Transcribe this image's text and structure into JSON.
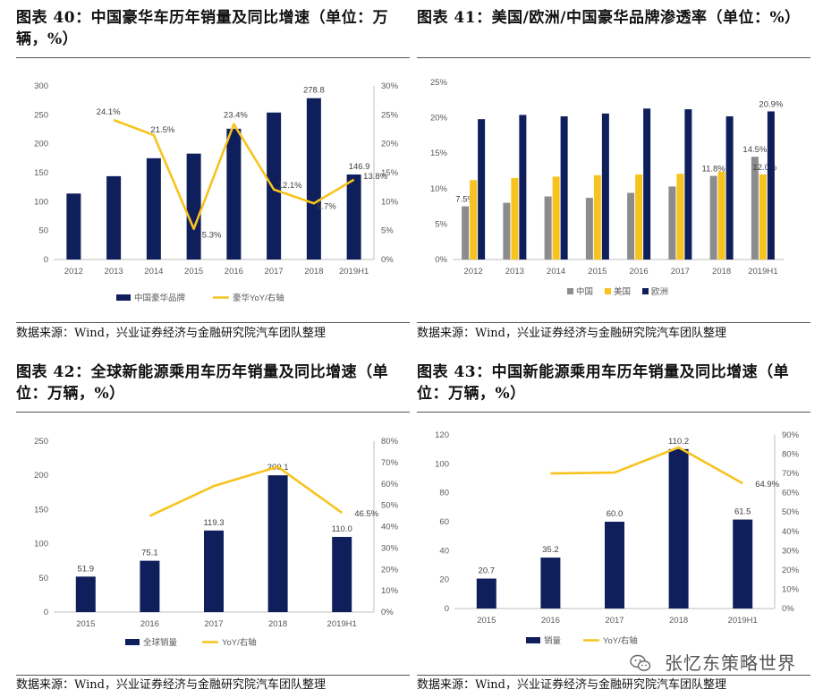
{
  "colors": {
    "navy": "#0f1f5c",
    "yellow": "#f7c31e",
    "gray": "#8c8c8c"
  },
  "watermark": {
    "text": "张忆东策略世界",
    "icon": "wechat-icon"
  },
  "panels": [
    {
      "title": "图表 40：中国豪华车历年销量及同比增速（单位：万辆，%）",
      "source": "数据来源：Wind，兴业证券经济与金融研究院汽车团队整理"
    },
    {
      "title": "图表 41：美国/欧洲/中国豪华品牌渗透率（单位：%）",
      "source": "数据来源：Wind，兴业证券经济与金融研究院汽车团队整理"
    },
    {
      "title": "图表 42：全球新能源乘用车历年销量及同比增速（单位：万辆，%）",
      "source": "数据来源：Wind，兴业证券经济与金融研究院汽车团队整理"
    },
    {
      "title": "图表 43：中国新能源乘用车历年销量及同比增速（单位：万辆，%）",
      "source": "数据来源：Wind，兴业证券经济与金融研究院汽车团队整理"
    }
  ],
  "chart_data": [
    {
      "type": "bar+line",
      "title": "中国豪华车历年销量及同比增速",
      "categories": [
        "2012",
        "2013",
        "2014",
        "2015",
        "2016",
        "2017",
        "2018",
        "2019H1"
      ],
      "series": [
        {
          "name": "中国豪华品牌",
          "kind": "bar",
          "axis": "left",
          "values": [
            114,
            144,
            175,
            183,
            226,
            254,
            278.8,
            146.9
          ],
          "labels": [
            null,
            null,
            null,
            null,
            null,
            null,
            "278.8",
            "146.9"
          ]
        },
        {
          "name": "豪华YoY/右轴",
          "kind": "line",
          "axis": "right",
          "values": [
            null,
            24.1,
            21.5,
            5.3,
            23.4,
            12.1,
            9.7,
            13.8
          ],
          "labels": [
            null,
            "24.1%",
            "21.5%",
            "5.3%",
            "23.4%",
            "12.1%",
            "9.7%",
            "13.8%"
          ]
        }
      ],
      "ylim": [
        0,
        300
      ],
      "yticks": [
        "0",
        "50",
        "100",
        "150",
        "200",
        "250",
        "300"
      ],
      "y2lim": [
        0,
        30
      ],
      "y2ticks": [
        "0%",
        "5%",
        "10%",
        "15%",
        "20%",
        "25%",
        "30%"
      ],
      "legend": "bottom"
    },
    {
      "type": "grouped-bar",
      "title": "美国/欧洲/中国豪华品牌渗透率",
      "categories": [
        "2012",
        "2013",
        "2014",
        "2015",
        "2016",
        "2017",
        "2018",
        "2019H1"
      ],
      "series": [
        {
          "name": "中国",
          "color": "gray",
          "values": [
            7.5,
            8.0,
            8.9,
            8.7,
            9.4,
            10.3,
            11.8,
            14.5
          ],
          "labels": [
            "7.5%",
            null,
            null,
            null,
            null,
            null,
            "11.8%",
            "14.5%"
          ]
        },
        {
          "name": "美国",
          "color": "yellow",
          "values": [
            11.2,
            11.5,
            11.7,
            11.9,
            12.0,
            12.1,
            12.4,
            12.0
          ],
          "labels": [
            null,
            null,
            null,
            null,
            null,
            null,
            null,
            "12.0%"
          ]
        },
        {
          "name": "欧洲",
          "color": "navy",
          "values": [
            19.8,
            20.4,
            20.2,
            20.6,
            21.3,
            21.2,
            20.2,
            20.9
          ],
          "labels": [
            null,
            null,
            null,
            null,
            null,
            null,
            null,
            "20.9%"
          ]
        }
      ],
      "ylim": [
        0,
        25
      ],
      "yticks": [
        "0%",
        "5%",
        "10%",
        "15%",
        "20%",
        "25%"
      ],
      "legend": "bottom"
    },
    {
      "type": "bar+line",
      "title": "全球新能源乘用车历年销量及同比增速",
      "categories": [
        "2015",
        "2016",
        "2017",
        "2018",
        "2019H1"
      ],
      "series": [
        {
          "name": "全球销量",
          "kind": "bar",
          "axis": "left",
          "values": [
            51.9,
            75.1,
            119.3,
            200.1,
            110.0
          ],
          "labels": [
            "51.9",
            "75.1",
            "119.3",
            "200.1",
            "110.0"
          ]
        },
        {
          "name": "YoY/右轴",
          "kind": "line",
          "axis": "right",
          "values": [
            null,
            45,
            59,
            68,
            46.5
          ],
          "labels": [
            null,
            null,
            null,
            null,
            "46.5%"
          ]
        }
      ],
      "ylim": [
        0,
        250
      ],
      "yticks": [
        "0",
        "50",
        "100",
        "150",
        "200",
        "250"
      ],
      "y2lim": [
        0,
        80
      ],
      "y2ticks": [
        "0%",
        "10%",
        "20%",
        "30%",
        "40%",
        "50%",
        "60%",
        "70%",
        "80%"
      ],
      "legend": "bottom"
    },
    {
      "type": "bar+line",
      "title": "中国新能源乘用车历年销量及同比增速",
      "categories": [
        "2015",
        "2016",
        "2017",
        "2018",
        "2019H1"
      ],
      "series": [
        {
          "name": "销量",
          "kind": "bar",
          "axis": "left",
          "values": [
            20.7,
            35.2,
            60.0,
            110.2,
            61.5
          ],
          "labels": [
            "20.7",
            "35.2",
            "60.0",
            "110.2",
            "61.5"
          ]
        },
        {
          "name": "YoY/右轴",
          "kind": "line",
          "axis": "right",
          "values": [
            null,
            70,
            70.5,
            83.5,
            64.9
          ],
          "labels": [
            null,
            null,
            null,
            null,
            "64.9%"
          ]
        }
      ],
      "ylim": [
        0,
        120
      ],
      "yticks": [
        "0",
        "20",
        "40",
        "60",
        "80",
        "100",
        "120"
      ],
      "y2lim": [
        0,
        90
      ],
      "y2ticks": [
        "0%",
        "10%",
        "20%",
        "30%",
        "40%",
        "50%",
        "60%",
        "70%",
        "80%",
        "90%"
      ],
      "legend": "bottom"
    }
  ]
}
